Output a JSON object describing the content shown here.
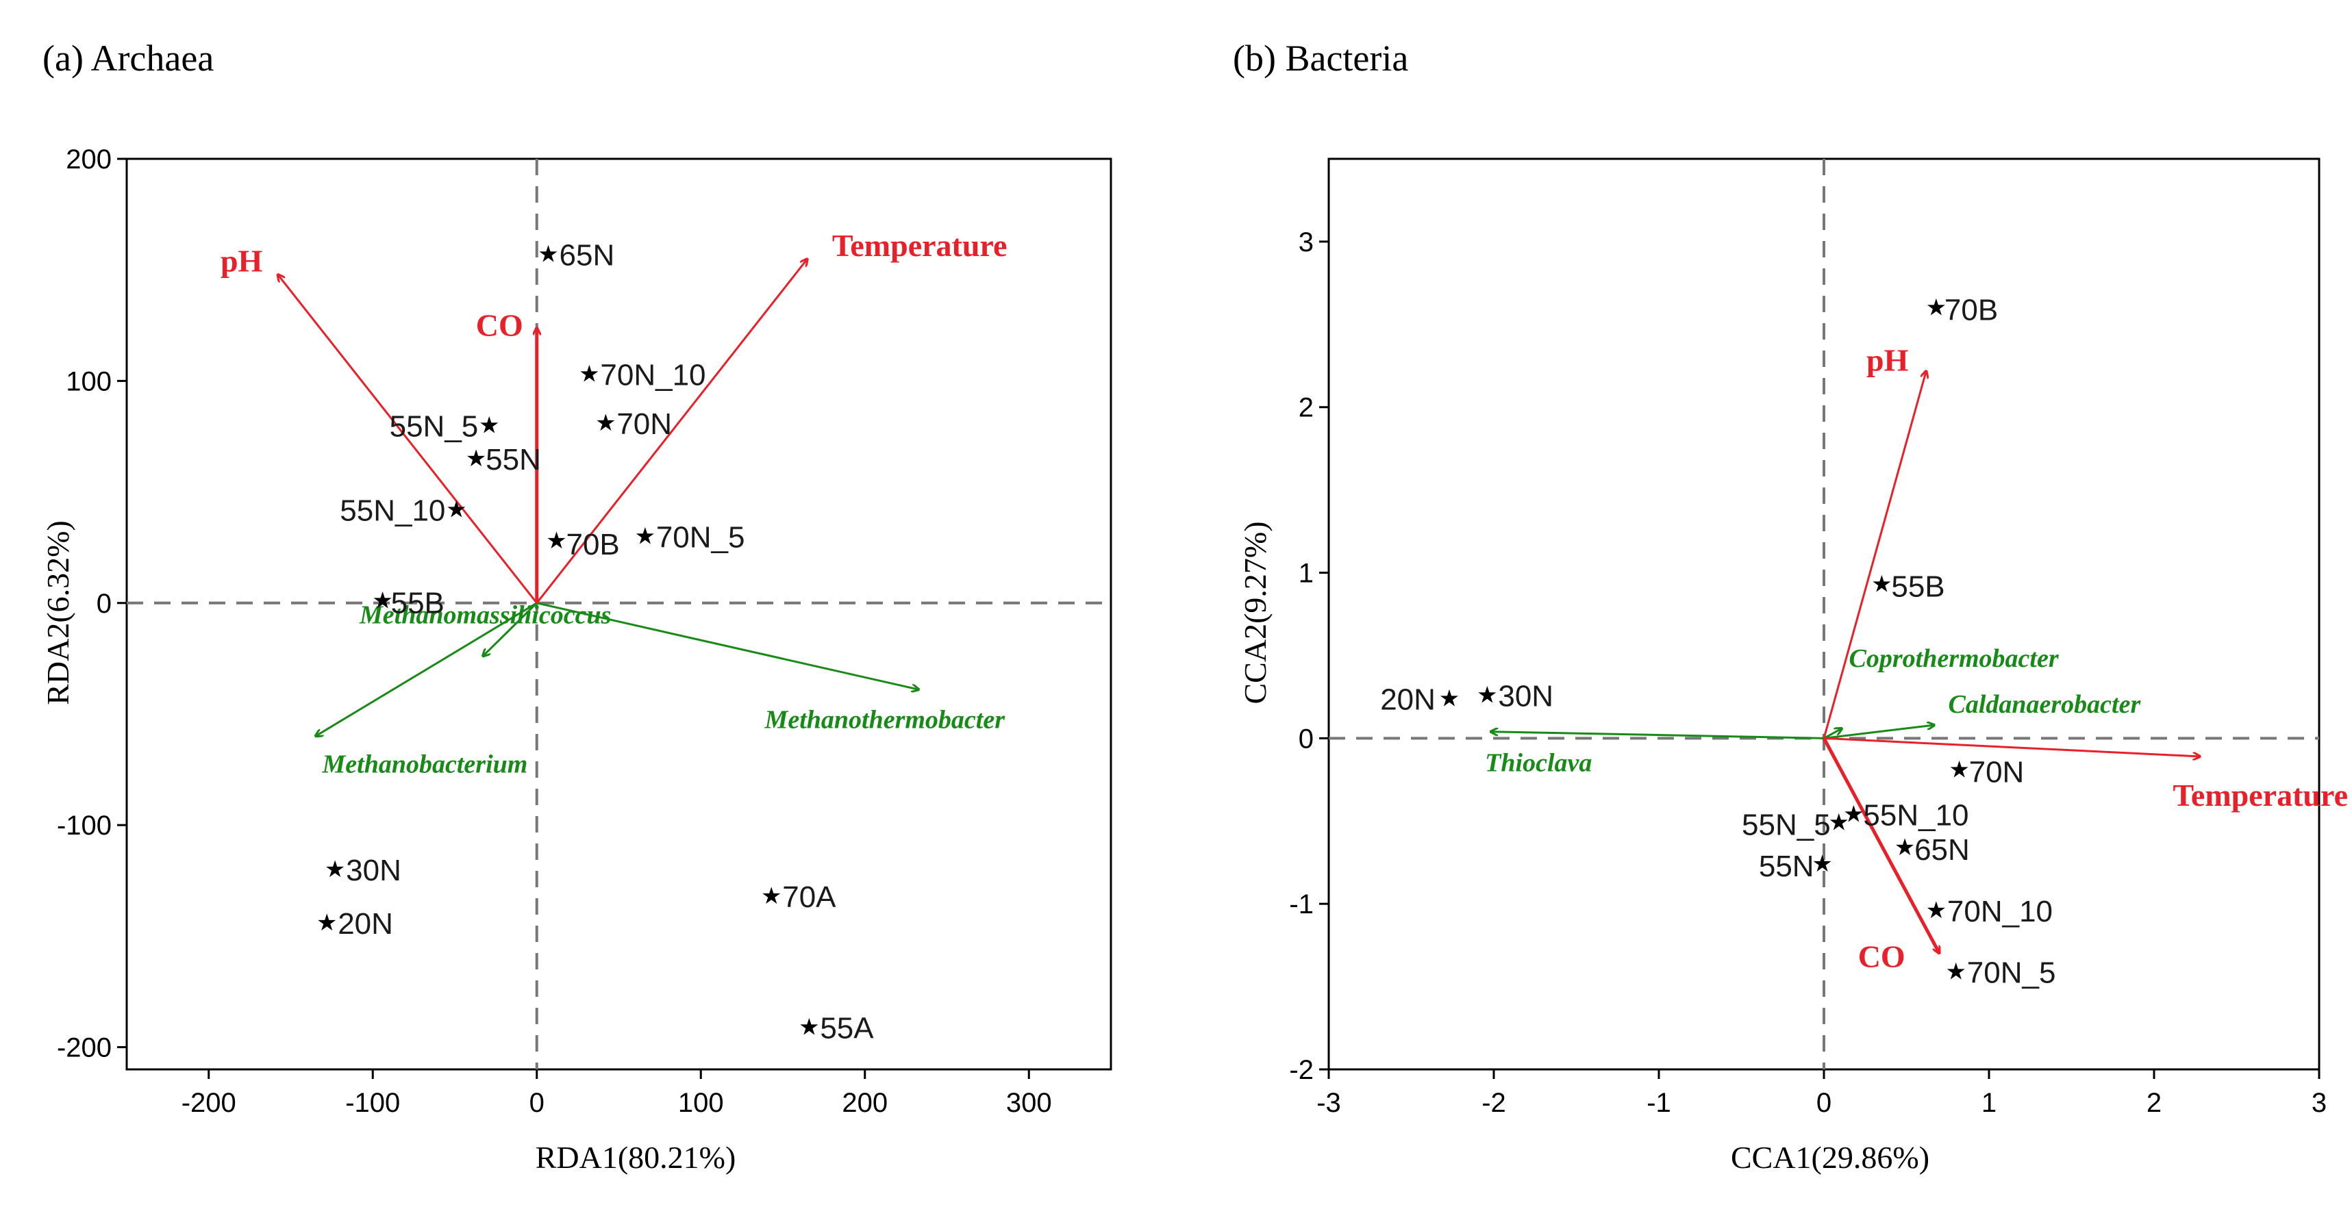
{
  "chart_data": [
    {
      "type": "scatter",
      "panel_label": "(a) Archaea",
      "xlabel": "RDA1(80.21%)",
      "ylabel": "RDA2(6.32%)",
      "xlim": [
        -250,
        350
      ],
      "ylim": [
        -210,
        200
      ],
      "xticks": [
        -200,
        -100,
        0,
        100,
        200,
        300
      ],
      "yticks": [
        -200,
        -100,
        0,
        100,
        200
      ],
      "samples": [
        {
          "label": "65N",
          "x": 7,
          "y": 157
        },
        {
          "label": "70N_10",
          "x": 32,
          "y": 103
        },
        {
          "label": "70N",
          "x": 42,
          "y": 81
        },
        {
          "label": "55N_5",
          "x": -29,
          "y": 80
        },
        {
          "label": "55N",
          "x": -37,
          "y": 65
        },
        {
          "label": "55N_10",
          "x": -49,
          "y": 42
        },
        {
          "label": "70B",
          "x": 12,
          "y": 28
        },
        {
          "label": "70N_5",
          "x": 66,
          "y": 30
        },
        {
          "label": "55B",
          "x": -94,
          "y": 1
        },
        {
          "label": "30N",
          "x": -123,
          "y": -120
        },
        {
          "label": "20N",
          "x": -128,
          "y": -144
        },
        {
          "label": "70A",
          "x": 143,
          "y": -132
        },
        {
          "label": "55A",
          "x": 166,
          "y": -191
        }
      ],
      "env_vectors": [
        {
          "label": "pH",
          "x": -158,
          "y": 148
        },
        {
          "label": "CO",
          "x": 0,
          "y": 124
        },
        {
          "label": "Temperature",
          "x": 165,
          "y": 155
        }
      ],
      "taxa_vectors": [
        {
          "label": "Methanomassiliicoccus",
          "x": -33,
          "y": -24
        },
        {
          "label": "Methanothermobacter",
          "x": 233,
          "y": -39
        },
        {
          "label": "Methanobacterium",
          "x": -135,
          "y": -60
        }
      ]
    },
    {
      "type": "scatter",
      "panel_label": "(b) Bacteria",
      "xlabel": "CCA1(29.86%)",
      "ylabel": "CCA2(9.27%)",
      "xlim": [
        -3,
        3
      ],
      "ylim": [
        -2,
        3.5
      ],
      "xticks": [
        -3,
        -2,
        -1,
        0,
        1,
        2,
        3
      ],
      "yticks": [
        -2,
        -1,
        0,
        1,
        2,
        3
      ],
      "samples": [
        {
          "label": "70B",
          "x": 0.68,
          "y": 2.6
        },
        {
          "label": "55B",
          "x": 0.35,
          "y": 0.93
        },
        {
          "label": "20N",
          "x": -2.27,
          "y": 0.24
        },
        {
          "label": "30N",
          "x": -2.04,
          "y": 0.26
        },
        {
          "label": "70N",
          "x": 0.82,
          "y": -0.19
        },
        {
          "label": "55N_10",
          "x": 0.18,
          "y": -0.46
        },
        {
          "label": "55N_5",
          "x": 0.09,
          "y": -0.51
        },
        {
          "label": "65N",
          "x": 0.49,
          "y": -0.66
        },
        {
          "label": "55N",
          "x": -0.01,
          "y": -0.76
        },
        {
          "label": "70N_10",
          "x": 0.68,
          "y": -1.04
        },
        {
          "label": "70N_5",
          "x": 0.8,
          "y": -1.41
        }
      ],
      "env_vectors": [
        {
          "label": "pH",
          "x": 0.62,
          "y": 2.22
        },
        {
          "label": "Temperature",
          "x": 2.28,
          "y": -0.11
        },
        {
          "label": "CO",
          "x": 0.7,
          "y": -1.3
        }
      ],
      "taxa_vectors": [
        {
          "label": "Coprothermobacter",
          "x": 0.11,
          "y": 0.06
        },
        {
          "label": "Caldanaerobacter",
          "x": 0.67,
          "y": 0.08
        },
        {
          "label": "Thioclava",
          "x": -2.02,
          "y": 0.04
        }
      ]
    }
  ]
}
